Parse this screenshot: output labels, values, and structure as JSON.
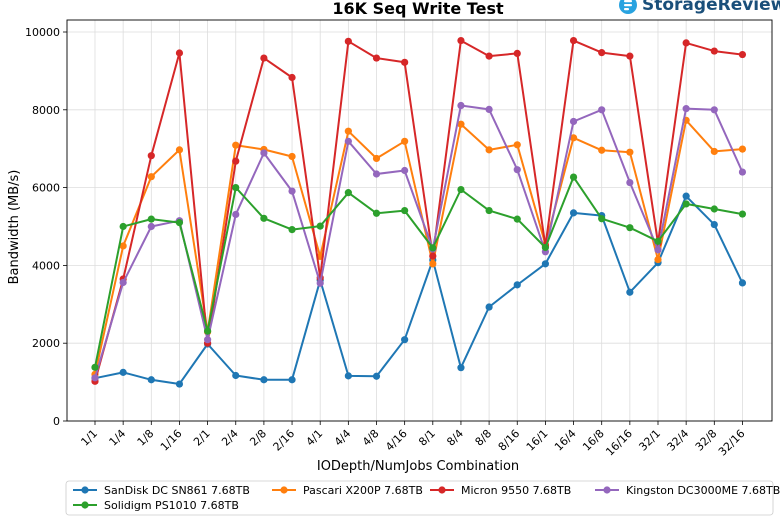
{
  "brand": {
    "text": "StorageReview",
    "color": "#1a4f7a",
    "icon": "storagereview-logo-icon",
    "icon_color": "#29a3e0"
  },
  "chart_data": {
    "type": "line",
    "title": "16K Seq Write Test",
    "xlabel": "IODepth/NumJobs Combination",
    "ylabel": "Bandwidth (MB/s)",
    "ylim": [
      0,
      10000
    ],
    "yticks": [
      0,
      2000,
      4000,
      6000,
      8000,
      10000
    ],
    "grid": true,
    "legend": "bottom",
    "categories": [
      "1/1",
      "1/4",
      "1/8",
      "1/16",
      "2/1",
      "2/4",
      "2/8",
      "2/16",
      "4/1",
      "4/4",
      "4/8",
      "4/16",
      "8/1",
      "8/4",
      "8/8",
      "8/16",
      "16/1",
      "16/4",
      "16/8",
      "16/16",
      "32/1",
      "32/4",
      "32/8",
      "32/16"
    ],
    "series": [
      {
        "name": "SanDisk DC SN861 7.68TB",
        "color": "#1f77b4",
        "values": [
          1100,
          1250,
          1060,
          950,
          1980,
          1170,
          1060,
          1060,
          3620,
          1160,
          1150,
          2090,
          4140,
          1370,
          2930,
          3500,
          4040,
          5350,
          5280,
          3310,
          4070,
          5780,
          5050,
          3550
        ]
      },
      {
        "name": "Pascari X200P 7.68TB",
        "color": "#ff7f0e",
        "values": [
          1200,
          4500,
          6280,
          6970,
          2290,
          7090,
          6980,
          6800,
          4230,
          7450,
          6750,
          7190,
          4040,
          7630,
          6970,
          7100,
          4540,
          7280,
          6960,
          6910,
          4150,
          7730,
          6930,
          6990
        ]
      },
      {
        "name": "Micron 9550 7.68TB",
        "color": "#d62728",
        "values": [
          1020,
          3650,
          6820,
          9460,
          2000,
          6680,
          9330,
          8830,
          3680,
          9760,
          9330,
          9220,
          4240,
          9780,
          9380,
          9450,
          4500,
          9780,
          9470,
          9380,
          4570,
          9720,
          9510,
          9420
        ]
      },
      {
        "name": "Kingston DC3000ME 7.68TB",
        "color": "#9467bd",
        "values": [
          1110,
          3560,
          5000,
          5150,
          2090,
          5310,
          6890,
          5910,
          3540,
          7190,
          6350,
          6440,
          4420,
          8110,
          8010,
          6460,
          4350,
          7700,
          8000,
          6130,
          4400,
          8030,
          8000,
          6400
        ]
      },
      {
        "name": "Solidigm PS1010 7.68TB",
        "color": "#2ca02c",
        "values": [
          1380,
          5000,
          5190,
          5100,
          2310,
          6000,
          5210,
          4920,
          5010,
          5870,
          5340,
          5410,
          4450,
          5950,
          5410,
          5190,
          4460,
          6270,
          5200,
          4970,
          4620,
          5580,
          5450,
          5320
        ]
      }
    ]
  }
}
